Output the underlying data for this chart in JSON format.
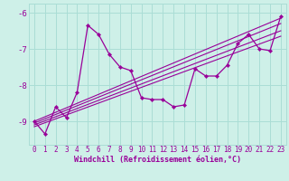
{
  "xlabel": "Windchill (Refroidissement éolien,°C)",
  "ylabel": "",
  "bg_color": "#cef0e8",
  "line_color": "#990099",
  "axes_color": "#990099",
  "grid_color": "#aaddd5",
  "spine_color": "#aaddd5",
  "xlim": [
    -0.5,
    23.5
  ],
  "ylim": [
    -9.65,
    -5.75
  ],
  "yticks": [
    -9,
    -8,
    -7,
    -6
  ],
  "xticks": [
    0,
    1,
    2,
    3,
    4,
    5,
    6,
    7,
    8,
    9,
    10,
    11,
    12,
    13,
    14,
    15,
    16,
    17,
    18,
    19,
    20,
    21,
    22,
    23
  ],
  "series": [
    [
      0,
      -9.0
    ],
    [
      1,
      -9.35
    ],
    [
      2,
      -8.6
    ],
    [
      3,
      -8.9
    ],
    [
      4,
      -8.2
    ],
    [
      5,
      -6.35
    ],
    [
      6,
      -6.6
    ],
    [
      7,
      -7.15
    ],
    [
      8,
      -7.5
    ],
    [
      9,
      -7.6
    ],
    [
      10,
      -8.35
    ],
    [
      11,
      -8.4
    ],
    [
      12,
      -8.4
    ],
    [
      13,
      -8.6
    ],
    [
      14,
      -8.55
    ],
    [
      15,
      -7.55
    ],
    [
      16,
      -7.75
    ],
    [
      17,
      -7.75
    ],
    [
      18,
      -7.45
    ],
    [
      19,
      -6.85
    ],
    [
      20,
      -6.6
    ],
    [
      21,
      -7.0
    ],
    [
      22,
      -7.05
    ],
    [
      23,
      -6.1
    ]
  ],
  "regression_lines": [
    {
      "x0": 0,
      "y0": -9.0,
      "x1": 23,
      "y1": -6.15
    },
    {
      "x0": 0,
      "y0": -9.05,
      "x1": 23,
      "y1": -6.3
    },
    {
      "x0": 0,
      "y0": -9.1,
      "x1": 23,
      "y1": -6.5
    },
    {
      "x0": 0,
      "y0": -9.15,
      "x1": 23,
      "y1": -6.65
    }
  ]
}
